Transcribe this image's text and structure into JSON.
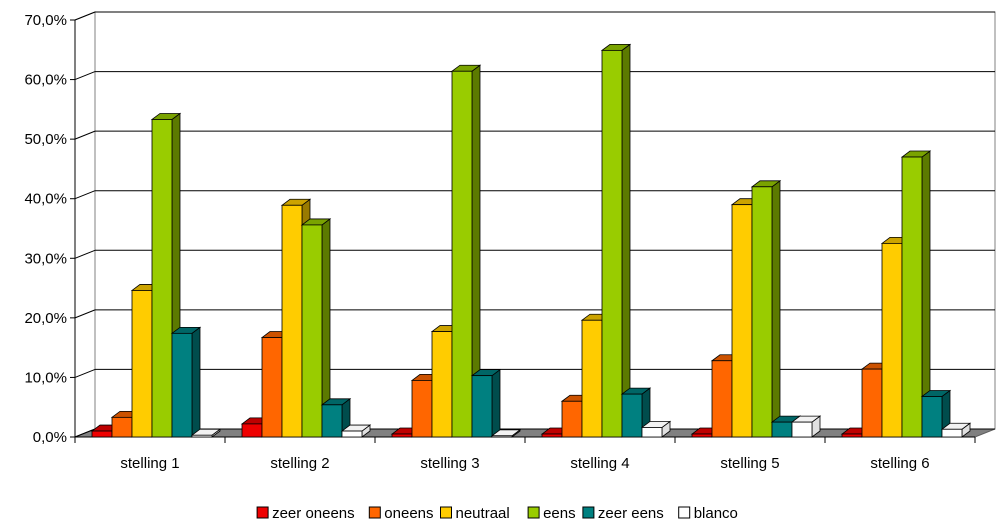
{
  "chart_data": {
    "type": "bar",
    "title": "",
    "xlabel": "",
    "ylabel": "",
    "ylim": [
      0,
      70
    ],
    "y_ticks": [
      "0,0%",
      "10,0%",
      "20,0%",
      "30,0%",
      "40,0%",
      "50,0%",
      "60,0%",
      "70,0%"
    ],
    "y_tick_values": [
      0,
      10,
      20,
      30,
      40,
      50,
      60,
      70
    ],
    "grid": true,
    "legend_position": "bottom",
    "categories": [
      "stelling 1",
      "stelling 2",
      "stelling 3",
      "stelling 4",
      "stelling 5",
      "stelling 6"
    ],
    "series": [
      {
        "name": "zeer oneens",
        "color": "#ee0000",
        "values": [
          1.0,
          2.2,
          0.5,
          0.5,
          0.5,
          0.5
        ]
      },
      {
        "name": "oneens",
        "color": "#ff6600",
        "values": [
          3.3,
          16.7,
          9.5,
          6.0,
          12.8,
          11.4
        ]
      },
      {
        "name": "neutraal",
        "color": "#ffcc00",
        "values": [
          24.6,
          38.9,
          17.7,
          19.6,
          39.0,
          32.5
        ]
      },
      {
        "name": "eens",
        "color": "#99cc00",
        "values": [
          53.3,
          35.6,
          61.4,
          64.9,
          42.0,
          47.0
        ]
      },
      {
        "name": "zeer eens",
        "color": "#008080",
        "values": [
          17.4,
          5.4,
          10.3,
          7.2,
          2.5,
          6.8
        ]
      },
      {
        "name": "blanco",
        "color": "#ffffff",
        "values": [
          0.3,
          1.0,
          0.2,
          1.6,
          2.5,
          1.3
        ]
      }
    ]
  }
}
